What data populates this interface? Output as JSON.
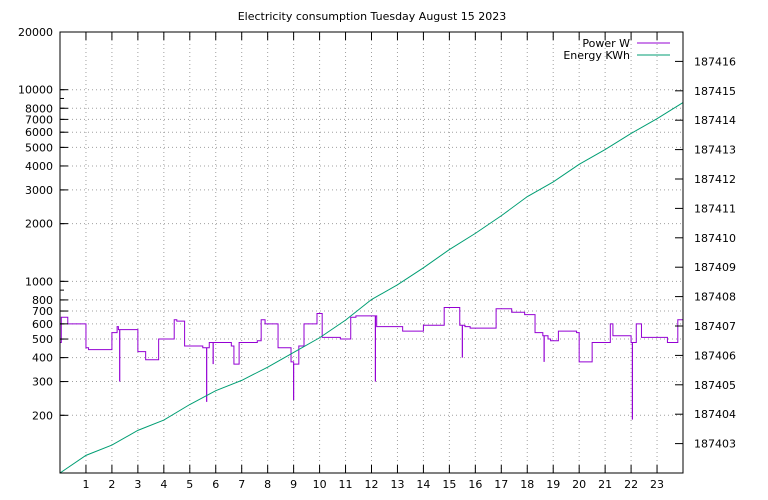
{
  "chart_data": {
    "type": "line",
    "title": "Electricity consumption Tuesday August 15 2023",
    "xlabel": "",
    "ylabel": "",
    "y2label": "",
    "xlim": [
      0,
      24
    ],
    "ylim": [
      100,
      20000
    ],
    "y_scale": "log",
    "y2lim": [
      187402.0,
      187417.0
    ],
    "grid": true,
    "legend_position": "top-right",
    "x_ticks": [
      1,
      2,
      3,
      4,
      5,
      6,
      7,
      8,
      9,
      10,
      11,
      12,
      13,
      14,
      15,
      16,
      17,
      18,
      19,
      20,
      21,
      22,
      23
    ],
    "y_ticks": [
      {
        "value": 200,
        "label": "200"
      },
      {
        "value": 300,
        "label": "300"
      },
      {
        "value": 400,
        "label": "400"
      },
      {
        "value": 500,
        "label": "500"
      },
      {
        "value": 600,
        "label": "600"
      },
      {
        "value": 700,
        "label": "700"
      },
      {
        "value": 800,
        "label": "800"
      },
      {
        "value": 1000,
        "label": "1000"
      },
      {
        "value": 2000,
        "label": "2000"
      },
      {
        "value": 3000,
        "label": "3000"
      },
      {
        "value": 4000,
        "label": "4000"
      },
      {
        "value": 5000,
        "label": "5000"
      },
      {
        "value": 6000,
        "label": "6000"
      },
      {
        "value": 7000,
        "label": "7000"
      },
      {
        "value": 8000,
        "label": "8000"
      },
      {
        "value": 10000,
        "label": "10000"
      },
      {
        "value": 20000,
        "label": "20000"
      }
    ],
    "y2_ticks": [
      187403,
      187404,
      187405,
      187406,
      187407,
      187408,
      187409,
      187410,
      187411,
      187412,
      187413,
      187414,
      187415,
      187416
    ],
    "series": [
      {
        "name": "Power W",
        "axis": "y",
        "color": "#9400d3",
        "points": [
          [
            0.0,
            480
          ],
          [
            0.05,
            650
          ],
          [
            0.3,
            600
          ],
          [
            1.0,
            450
          ],
          [
            1.1,
            440
          ],
          [
            2.0,
            540
          ],
          [
            2.2,
            580
          ],
          [
            2.25,
            560
          ],
          [
            3.0,
            430
          ],
          [
            3.3,
            390
          ],
          [
            3.8,
            500
          ],
          [
            4.4,
            630
          ],
          [
            4.5,
            620
          ],
          [
            4.8,
            460
          ],
          [
            5.5,
            450
          ],
          [
            5.75,
            480
          ],
          [
            6.6,
            460
          ],
          [
            6.7,
            370
          ],
          [
            6.9,
            480
          ],
          [
            7.6,
            490
          ],
          [
            7.75,
            630
          ],
          [
            7.9,
            600
          ],
          [
            8.4,
            450
          ],
          [
            8.9,
            380
          ],
          [
            9.0,
            370
          ],
          [
            9.2,
            460
          ],
          [
            9.4,
            600
          ],
          [
            9.9,
            680
          ],
          [
            10.1,
            510
          ],
          [
            10.8,
            500
          ],
          [
            11.2,
            650
          ],
          [
            11.4,
            660
          ],
          [
            12.2,
            580
          ],
          [
            13.2,
            550
          ],
          [
            14.0,
            590
          ],
          [
            14.8,
            730
          ],
          [
            15.4,
            590
          ],
          [
            15.6,
            580
          ],
          [
            15.8,
            570
          ],
          [
            16.8,
            720
          ],
          [
            17.4,
            690
          ],
          [
            17.9,
            670
          ],
          [
            18.3,
            540
          ],
          [
            18.6,
            520
          ],
          [
            18.8,
            500
          ],
          [
            18.9,
            490
          ],
          [
            19.2,
            550
          ],
          [
            19.9,
            540
          ],
          [
            20.0,
            380
          ],
          [
            20.5,
            480
          ],
          [
            21.2,
            600
          ],
          [
            21.3,
            520
          ],
          [
            22.0,
            480
          ],
          [
            22.2,
            600
          ],
          [
            22.4,
            510
          ],
          [
            23.4,
            480
          ],
          [
            23.8,
            630
          ]
        ],
        "spikes": [
          [
            2.3,
            300
          ],
          [
            5.65,
            235
          ],
          [
            5.9,
            370
          ],
          [
            9.0,
            240
          ],
          [
            12.15,
            300
          ],
          [
            15.5,
            400
          ],
          [
            18.65,
            380
          ],
          [
            22.05,
            190
          ]
        ]
      },
      {
        "name": "Energy KWh",
        "axis": "y2",
        "color": "#009e73",
        "points": [
          [
            0.0,
            187402.0
          ],
          [
            1.0,
            187402.6
          ],
          [
            2.0,
            187402.95
          ],
          [
            3.0,
            187403.45
          ],
          [
            4.0,
            187403.8
          ],
          [
            5.0,
            187404.33
          ],
          [
            6.0,
            187404.8
          ],
          [
            7.0,
            187405.15
          ],
          [
            8.0,
            187405.6
          ],
          [
            9.0,
            187406.1
          ],
          [
            10.0,
            187406.6
          ],
          [
            11.0,
            187407.2
          ],
          [
            12.0,
            187407.9
          ],
          [
            13.0,
            187408.4
          ],
          [
            14.0,
            187408.98
          ],
          [
            15.0,
            187409.6
          ],
          [
            16.0,
            187410.15
          ],
          [
            17.0,
            187410.75
          ],
          [
            18.0,
            187411.4
          ],
          [
            19.0,
            187411.9
          ],
          [
            20.0,
            187412.5
          ],
          [
            21.0,
            187413.0
          ],
          [
            22.0,
            187413.55
          ],
          [
            23.0,
            187414.05
          ],
          [
            24.0,
            187414.6
          ]
        ]
      }
    ]
  }
}
